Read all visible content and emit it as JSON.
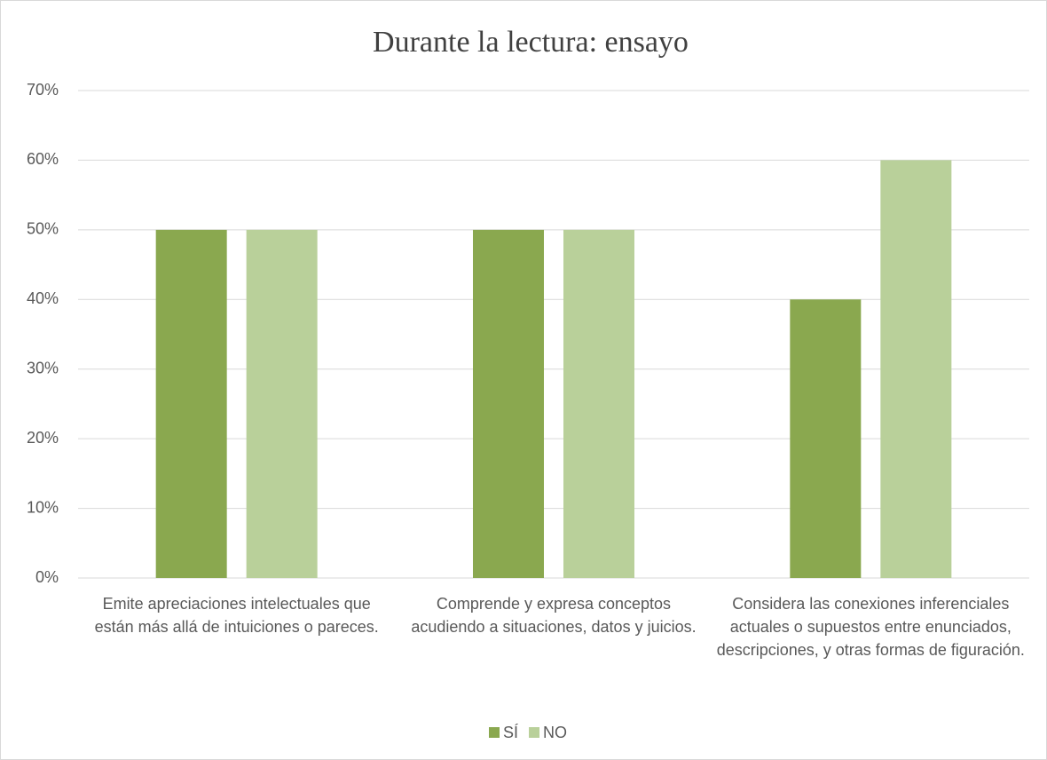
{
  "chart_data": {
    "type": "bar",
    "title": "Durante la lectura: ensayo",
    "categories": [
      "Emite apreciaciones intelectuales que están más allá de intuiciones o pareces.",
      "Comprende y expresa conceptos acudiendo a situaciones, datos y juicios.",
      "Considera las conexiones inferenciales actuales o supuestos entre enunciados, descripciones, y otras formas de figuración."
    ],
    "series": [
      {
        "name": "SÍ",
        "color": "#8aa84f",
        "values": [
          50,
          50,
          40
        ]
      },
      {
        "name": "NO",
        "color": "#b9d09a",
        "values": [
          50,
          50,
          60
        ]
      }
    ],
    "ylim": [
      0,
      70
    ],
    "yticks": [
      {
        "value": 0,
        "label": "0%"
      },
      {
        "value": 10,
        "label": "10%"
      },
      {
        "value": 20,
        "label": "20%"
      },
      {
        "value": 30,
        "label": "30%"
      },
      {
        "value": 40,
        "label": "40%"
      },
      {
        "value": 50,
        "label": "50%"
      },
      {
        "value": 60,
        "label": "60%"
      },
      {
        "value": 70,
        "label": "70%"
      }
    ],
    "grid": true,
    "legend": "bottom"
  }
}
